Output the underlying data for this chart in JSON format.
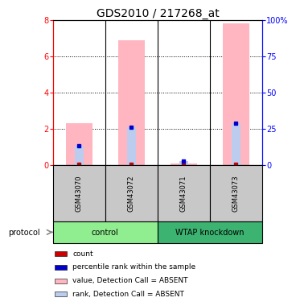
{
  "title": "GDS2010 / 217268_at",
  "samples": [
    "GSM43070",
    "GSM43072",
    "GSM43071",
    "GSM43073"
  ],
  "values_absent": [
    2.3,
    6.9,
    0.07,
    7.8
  ],
  "ranks_absent_pct": [
    13.0,
    26.0,
    2.5,
    29.0
  ],
  "bar_color_absent": "#FFB6C1",
  "rank_color_absent": "#BBCCEE",
  "count_color": "#CC0000",
  "rank_color": "#0000CC",
  "ylim_left": [
    0,
    8
  ],
  "ylim_right": [
    0,
    100
  ],
  "yticks_left": [
    0,
    2,
    4,
    6,
    8
  ],
  "yticks_right": [
    0,
    25,
    50,
    75,
    100
  ],
  "ytick_labels_right": [
    "0",
    "25",
    "50",
    "75",
    "100%"
  ],
  "bg_color": "#ffffff",
  "sample_bg_color": "#C8C8C8",
  "control_color": "#90EE90",
  "knockdown_color": "#3CB371",
  "title_fontsize": 10,
  "tick_fontsize": 7,
  "sample_fontsize": 6,
  "group_fontsize": 7,
  "legend_fontsize": 6.5,
  "legend_items": [
    {
      "color": "#CC0000",
      "label": "count"
    },
    {
      "color": "#0000CC",
      "label": "percentile rank within the sample"
    },
    {
      "color": "#FFB6C1",
      "label": "value, Detection Call = ABSENT"
    },
    {
      "color": "#BBCCEE",
      "label": "rank, Detection Call = ABSENT"
    }
  ]
}
